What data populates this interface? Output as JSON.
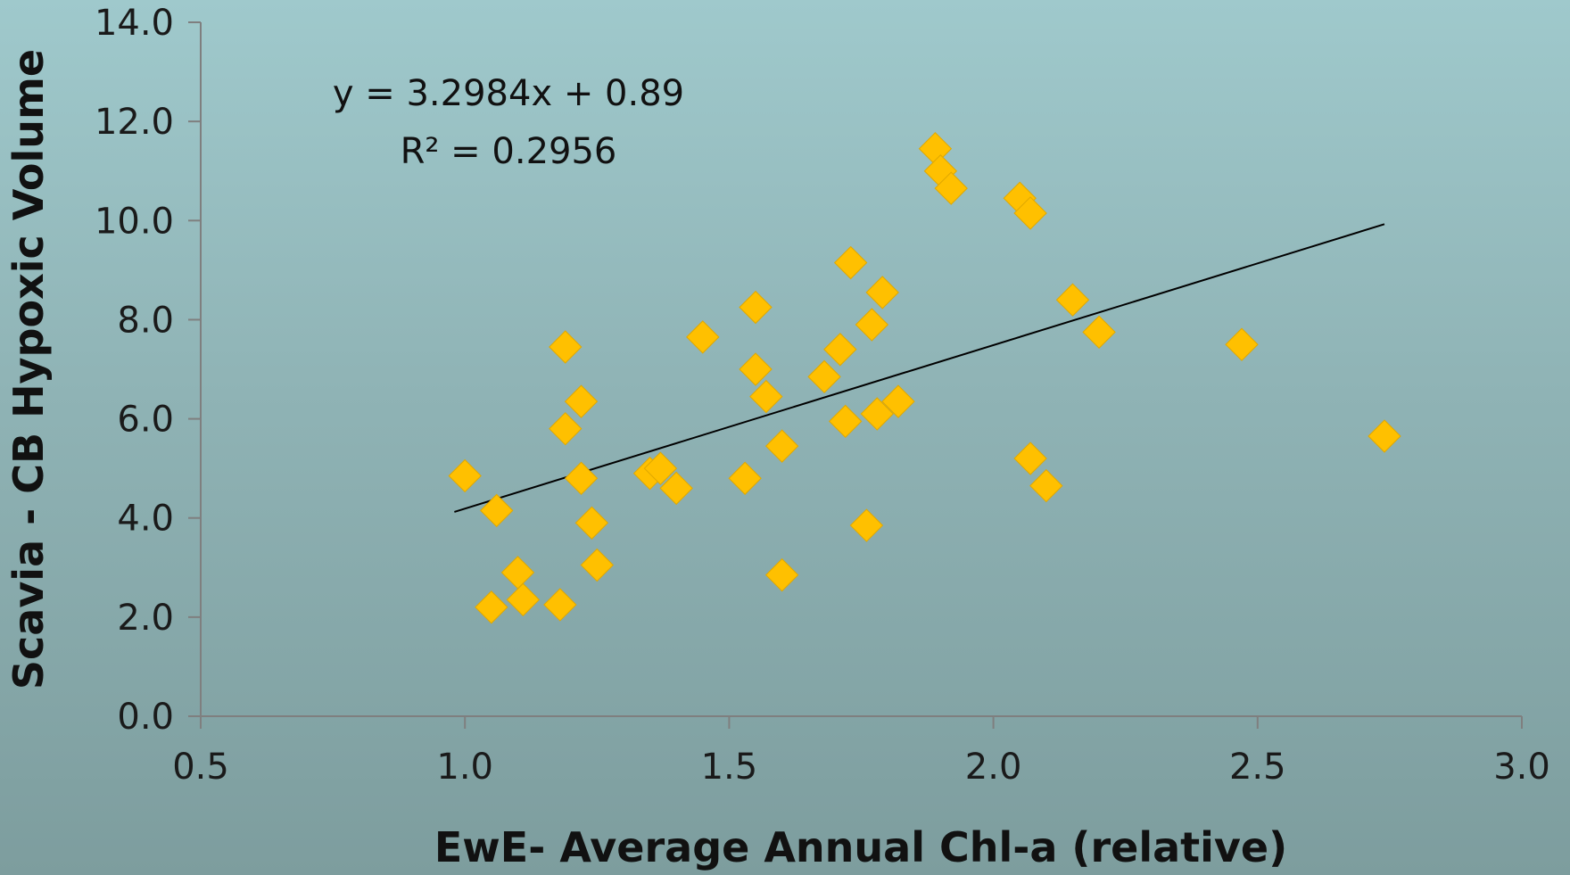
{
  "chart_data": {
    "type": "scatter",
    "title": "",
    "xlabel": "EwE- Average Annual Chl-a (relative)",
    "ylabel": "Scavia - CB Hypoxic Volume",
    "xlim": [
      0.5,
      3.0
    ],
    "ylim": [
      0.0,
      14.0
    ],
    "xticks": [
      "0.5",
      "1.0",
      "1.5",
      "2.0",
      "2.5",
      "3.0"
    ],
    "yticks": [
      "0.0",
      "2.0",
      "4.0",
      "6.0",
      "8.0",
      "10.0",
      "12.0",
      "14.0"
    ],
    "grid": false,
    "legend": "none",
    "marker": "diamond",
    "marker_color": "#FFC000",
    "series": [
      {
        "points": [
          [
            1.0,
            4.85
          ],
          [
            1.05,
            2.2
          ],
          [
            1.06,
            4.15
          ],
          [
            1.1,
            2.9
          ],
          [
            1.11,
            2.35
          ],
          [
            1.18,
            2.25
          ],
          [
            1.19,
            7.45
          ],
          [
            1.19,
            5.8
          ],
          [
            1.22,
            6.35
          ],
          [
            1.22,
            4.8
          ],
          [
            1.24,
            3.9
          ],
          [
            1.25,
            3.05
          ],
          [
            1.35,
            4.9
          ],
          [
            1.37,
            5.0
          ],
          [
            1.4,
            4.6
          ],
          [
            1.45,
            7.65
          ],
          [
            1.53,
            4.8
          ],
          [
            1.55,
            8.25
          ],
          [
            1.55,
            7.0
          ],
          [
            1.57,
            6.45
          ],
          [
            1.6,
            5.45
          ],
          [
            1.6,
            2.85
          ],
          [
            1.68,
            6.85
          ],
          [
            1.71,
            7.4
          ],
          [
            1.72,
            5.95
          ],
          [
            1.73,
            9.15
          ],
          [
            1.76,
            3.85
          ],
          [
            1.77,
            7.9
          ],
          [
            1.78,
            6.1
          ],
          [
            1.79,
            8.55
          ],
          [
            1.82,
            6.35
          ],
          [
            1.89,
            11.45
          ],
          [
            1.9,
            11.0
          ],
          [
            1.92,
            10.65
          ],
          [
            2.05,
            10.45
          ],
          [
            2.07,
            10.15
          ],
          [
            2.07,
            5.2
          ],
          [
            2.1,
            4.65
          ],
          [
            2.15,
            8.4
          ],
          [
            2.2,
            7.75
          ],
          [
            2.47,
            7.5
          ],
          [
            2.74,
            5.65
          ]
        ]
      }
    ],
    "trendline": {
      "type": "linear",
      "slope": 3.2984,
      "intercept": 0.89,
      "x_range": [
        0.98,
        2.74
      ],
      "color": "#000000"
    },
    "annotations": {
      "equation": "y = 3.2984x + 0.89",
      "r_squared": "R² = 0.2956"
    }
  }
}
